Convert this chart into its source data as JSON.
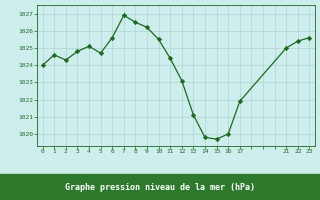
{
  "x": [
    0,
    1,
    2,
    3,
    4,
    5,
    6,
    7,
    8,
    9,
    10,
    11,
    12,
    13,
    14,
    15,
    16,
    17,
    21,
    22,
    23
  ],
  "y": [
    1024.0,
    1024.6,
    1024.3,
    1024.8,
    1025.1,
    1024.7,
    1025.6,
    1026.9,
    1026.5,
    1026.2,
    1025.5,
    1024.4,
    1023.1,
    1021.1,
    1019.8,
    1019.7,
    1020.0,
    1021.9,
    1025.0,
    1025.4,
    1025.6
  ],
  "line_color": "#1a6b1a",
  "marker_color": "#1a6b1a",
  "bg_color": "#ceeeed",
  "grid_color": "#aed4d2",
  "tick_color": "#1a6b1a",
  "xlabel": "Graphe pression niveau de la mer (hPa)",
  "xlabel_bg": "#2d7a2d",
  "xlabel_fg": "#ffffff",
  "xtick_labels": [
    "0",
    "1",
    "2",
    "3",
    "4",
    "5",
    "6",
    "7",
    "8",
    "9",
    "10",
    "11",
    "12",
    "13",
    "14",
    "15",
    "16",
    "17",
    "",
    "",
    "",
    "21",
    "22",
    "23"
  ],
  "all_xticks": [
    0,
    1,
    2,
    3,
    4,
    5,
    6,
    7,
    8,
    9,
    10,
    11,
    12,
    13,
    14,
    15,
    16,
    17,
    18,
    19,
    20,
    21,
    22,
    23
  ],
  "yticks": [
    1020,
    1021,
    1022,
    1023,
    1024,
    1025,
    1026,
    1027
  ],
  "ylim": [
    1019.3,
    1027.5
  ],
  "xlim": [
    -0.5,
    23.5
  ]
}
